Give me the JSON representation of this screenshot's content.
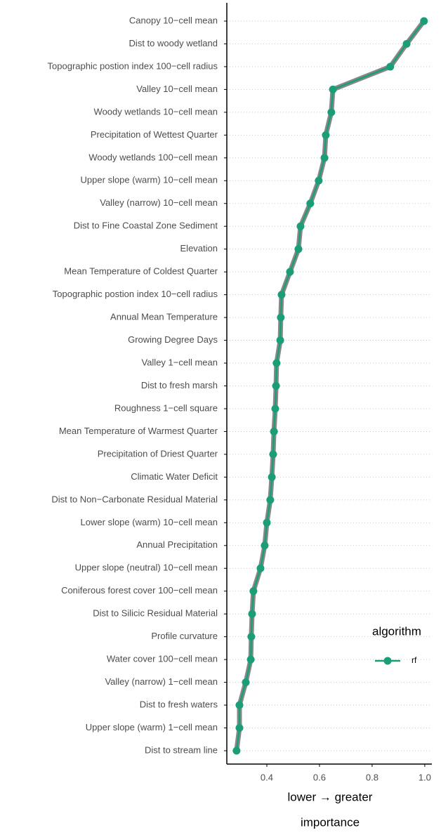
{
  "chart_data": {
    "type": "dot-line",
    "x_label_line1": "lower → greater",
    "x_label_line2": "importance",
    "legend_title": "algorithm",
    "legend_position": "right",
    "grid": true,
    "categories": [
      "Canopy 10−cell mean",
      "Dist to woody wetland",
      "Topographic postion index 100−cell radius",
      "Valley 10−cell mean",
      "Woody wetlands 10−cell mean",
      "Precipitation of Wettest Quarter",
      "Woody wetlands 100−cell mean",
      "Upper slope (warm) 10−cell mean",
      "Valley (narrow) 10−cell mean",
      "Dist to Fine Coastal Zone Sediment",
      "Elevation",
      "Mean Temperature of Coldest Quarter",
      "Topographic postion index 10−cell radius",
      "Annual Mean Temperature",
      "Growing Degree Days",
      "Valley 1−cell mean",
      "Dist to fresh marsh",
      "Roughness 1−cell square",
      "Mean Temperature of Warmest Quarter",
      "Precipitation of Driest Quarter",
      "Climatic Water Deficit",
      "Dist to Non−Carbonate Residual Material",
      "Lower slope (warm) 10−cell mean",
      "Annual Precipitation",
      "Upper slope (neutral) 10−cell mean",
      "Coniferous forest cover 100−cell mean",
      "Dist to Silicic Residual Material",
      "Profile curvature",
      "Water cover 100−cell mean",
      "Valley (narrow) 1−cell mean",
      "Dist to fresh waters",
      "Upper slope (warm) 1−cell mean",
      "Dist to stream line"
    ],
    "series": [
      {
        "name": "rf",
        "color": "#1b9e77",
        "values": [
          0.997,
          0.931,
          0.869,
          0.651,
          0.645,
          0.624,
          0.619,
          0.597,
          0.565,
          0.528,
          0.52,
          0.488,
          0.456,
          0.453,
          0.451,
          0.437,
          0.435,
          0.432,
          0.427,
          0.424,
          0.419,
          0.413,
          0.4,
          0.392,
          0.376,
          0.349,
          0.344,
          0.341,
          0.339,
          0.32,
          0.296,
          0.296,
          0.285
        ]
      }
    ],
    "xlim": [
      0.248,
      1.027
    ],
    "xticks": [
      0.4,
      0.6,
      0.8,
      {
        "value": 1,
        "label": "1.0"
      }
    ]
  }
}
